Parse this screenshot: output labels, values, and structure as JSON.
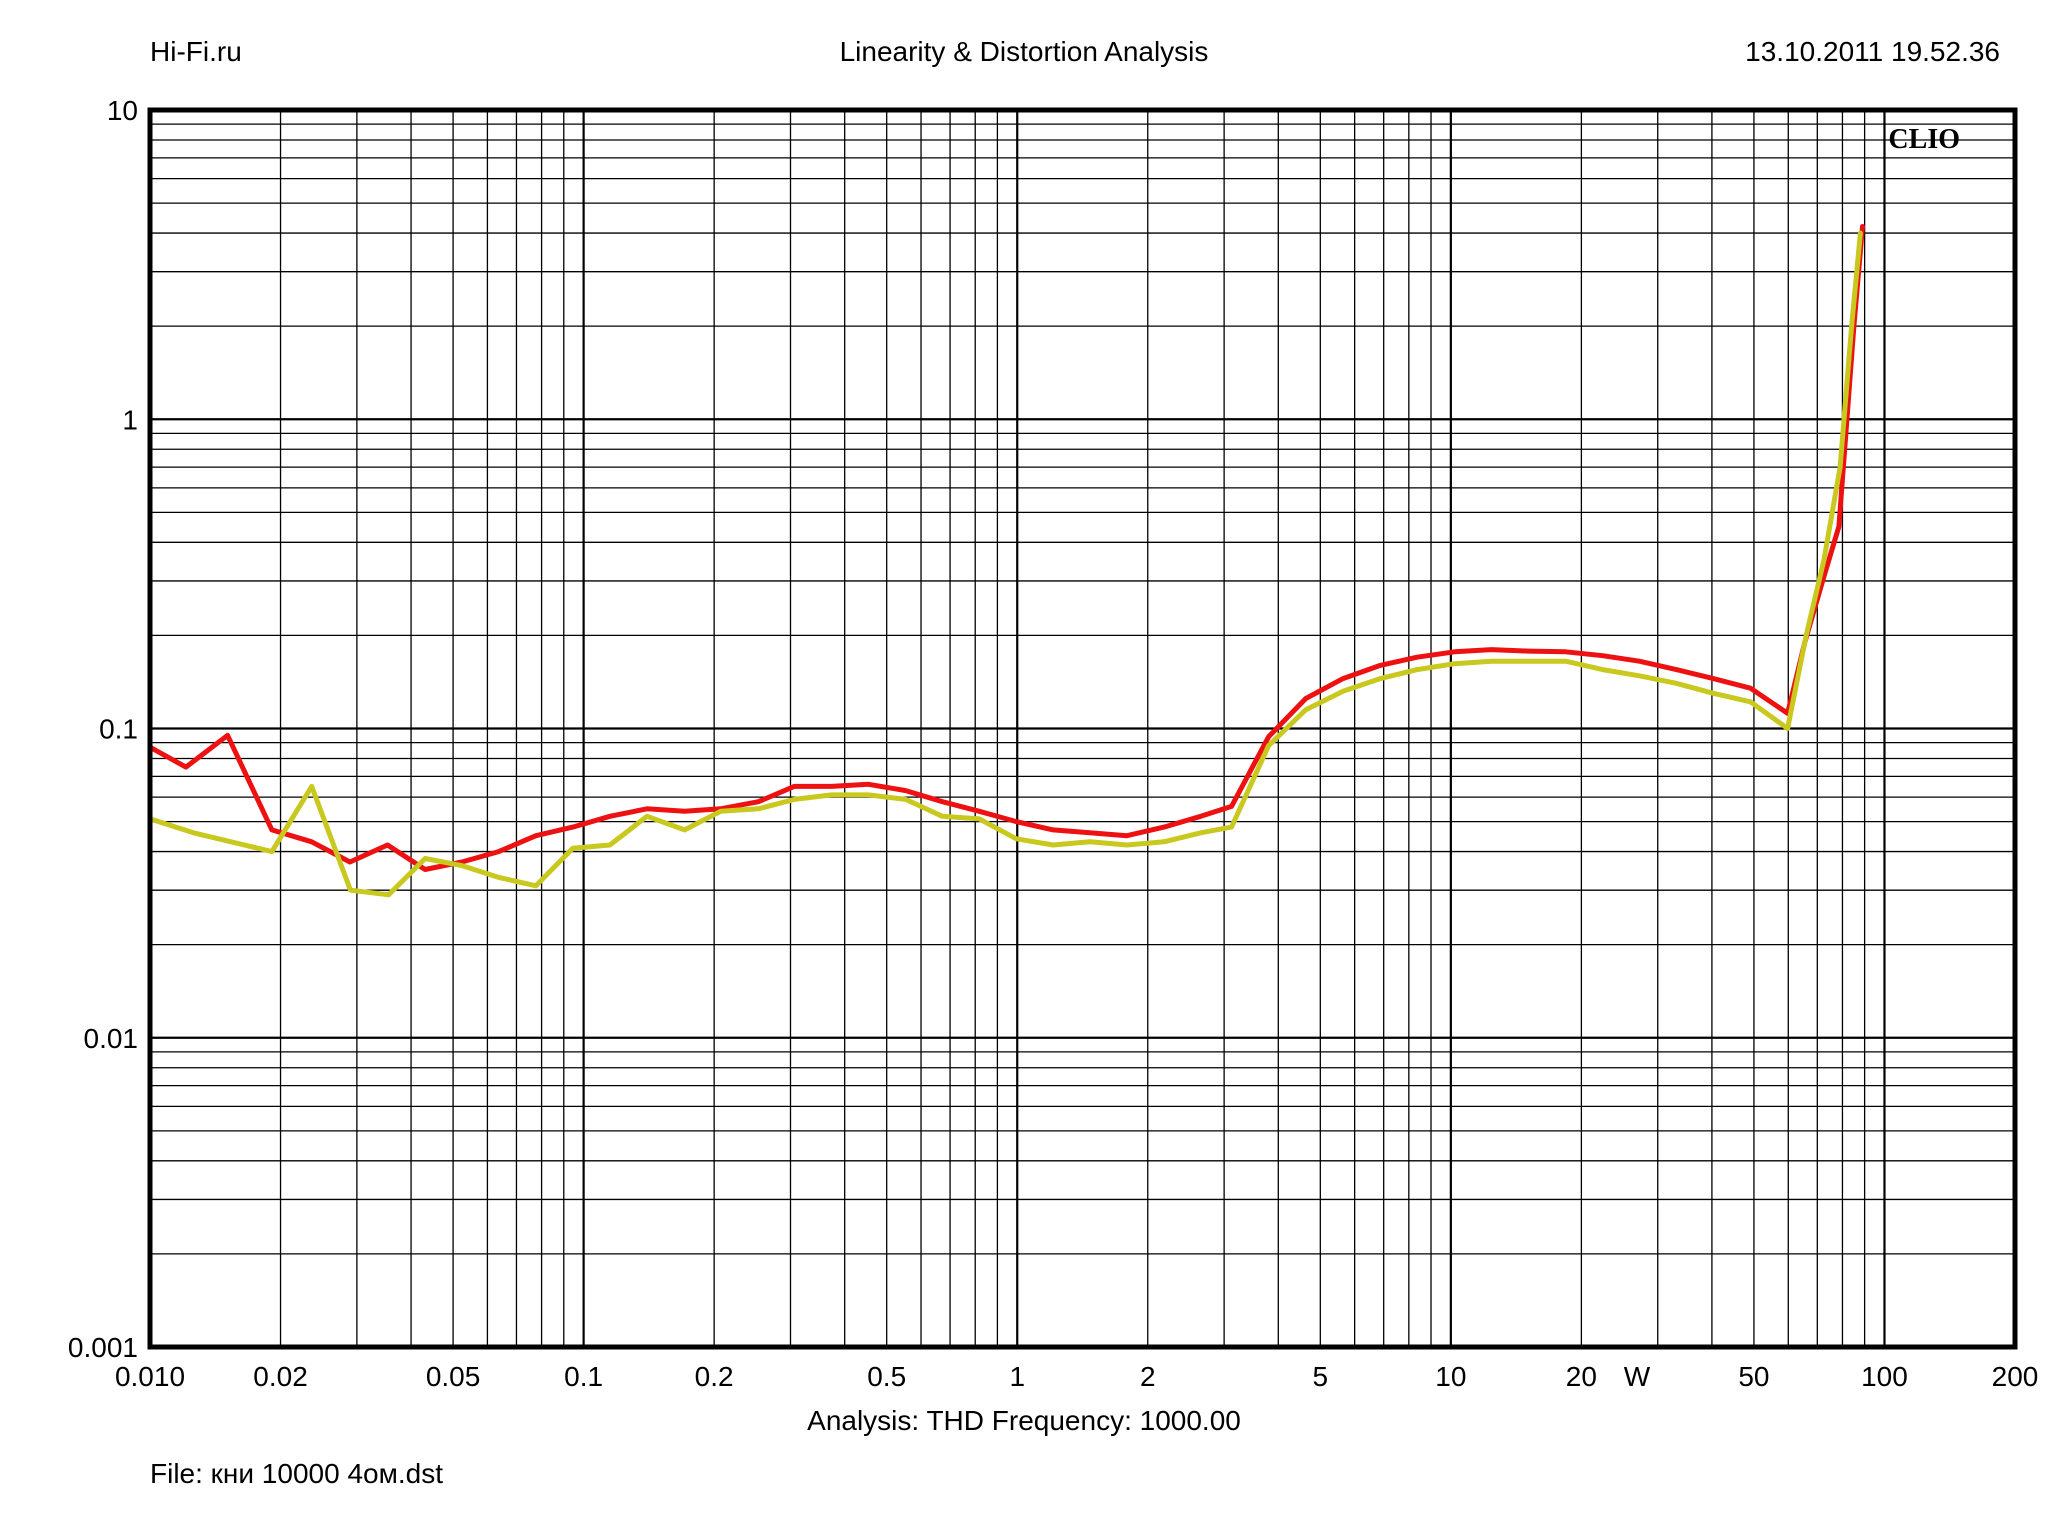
{
  "header": {
    "site": "Hi-Fi.ru",
    "title": "Linearity & Distortion Analysis",
    "timestamp": "13.10.2011 19.52.36"
  },
  "footer": {
    "analysis_label": "Analysis: THD   Frequency: 1000.00",
    "file_label": "File: кни 10000 4ом.dst"
  },
  "watermark": "CLIO",
  "colors": {
    "series_red": "#ee1111",
    "series_yellow": "#c8c81e",
    "grid": "#000000",
    "background": "#ffffff"
  },
  "chart_data": {
    "type": "line",
    "title": "Linearity & Distortion Analysis",
    "xlabel": "W",
    "ylabel": "",
    "x_scale": "log",
    "y_scale": "log",
    "xlim": [
      0.01,
      200
    ],
    "ylim": [
      0.001,
      10
    ],
    "grid": true,
    "x_ticks": [
      {
        "value": 0.01,
        "label": "0.010"
      },
      {
        "value": 0.02,
        "label": "0.02"
      },
      {
        "value": 0.05,
        "label": "0.05"
      },
      {
        "value": 0.1,
        "label": "0.1"
      },
      {
        "value": 0.2,
        "label": "0.2"
      },
      {
        "value": 0.5,
        "label": "0.5"
      },
      {
        "value": 1,
        "label": "1"
      },
      {
        "value": 2,
        "label": "2"
      },
      {
        "value": 5,
        "label": "5"
      },
      {
        "value": 10,
        "label": "10"
      },
      {
        "value": 20,
        "label": "20"
      },
      {
        "value": 50,
        "label": "50"
      },
      {
        "value": 100,
        "label": "100"
      },
      {
        "value": 200,
        "label": "200"
      }
    ],
    "y_ticks": [
      {
        "value": 10,
        "label": "10"
      },
      {
        "value": 1,
        "label": "1"
      },
      {
        "value": 0.1,
        "label": "0.1"
      },
      {
        "value": 0.01,
        "label": "0.01"
      },
      {
        "value": 0.001,
        "label": "0.001"
      }
    ],
    "series": [
      {
        "color": "#ee1111",
        "points": [
          [
            0.01,
            0.087
          ],
          [
            0.0121,
            0.075
          ],
          [
            0.0151,
            0.095
          ],
          [
            0.0191,
            0.047
          ],
          [
            0.0236,
            0.043
          ],
          [
            0.0289,
            0.037
          ],
          [
            0.0353,
            0.042
          ],
          [
            0.0431,
            0.035
          ],
          [
            0.0524,
            0.037
          ],
          [
            0.0637,
            0.04
          ],
          [
            0.0776,
            0.045
          ],
          [
            0.0944,
            0.048
          ],
          [
            0.115,
            0.052
          ],
          [
            0.14,
            0.055
          ],
          [
            0.171,
            0.054
          ],
          [
            0.207,
            0.055
          ],
          [
            0.253,
            0.058
          ],
          [
            0.306,
            0.065
          ],
          [
            0.373,
            0.065
          ],
          [
            0.454,
            0.066
          ],
          [
            0.553,
            0.063
          ],
          [
            0.672,
            0.058
          ],
          [
            0.818,
            0.054
          ],
          [
            0.995,
            0.05
          ],
          [
            1.21,
            0.047
          ],
          [
            1.47,
            0.046
          ],
          [
            1.79,
            0.045
          ],
          [
            2.18,
            0.048
          ],
          [
            2.65,
            0.052
          ],
          [
            3.12,
            0.056
          ],
          [
            3.8,
            0.094
          ],
          [
            4.63,
            0.125
          ],
          [
            5.64,
            0.145
          ],
          [
            6.87,
            0.16
          ],
          [
            8.36,
            0.17
          ],
          [
            10.2,
            0.177
          ],
          [
            12.4,
            0.18
          ],
          [
            15.1,
            0.178
          ],
          [
            18.4,
            0.177
          ],
          [
            22.4,
            0.172
          ],
          [
            27.2,
            0.165
          ],
          [
            33.1,
            0.155
          ],
          [
            40.3,
            0.145
          ],
          [
            49.1,
            0.135
          ],
          [
            59.8,
            0.112
          ],
          [
            65.5,
            0.19
          ],
          [
            72.0,
            0.3
          ],
          [
            78.5,
            0.45
          ],
          [
            85.0,
            2.0
          ],
          [
            89.0,
            4.2
          ]
        ]
      },
      {
        "color": "#c8c81e",
        "points": [
          [
            0.01,
            0.051
          ],
          [
            0.0126,
            0.046
          ],
          [
            0.0191,
            0.04
          ],
          [
            0.0236,
            0.065
          ],
          [
            0.029,
            0.03
          ],
          [
            0.0355,
            0.029
          ],
          [
            0.0431,
            0.038
          ],
          [
            0.0525,
            0.036
          ],
          [
            0.0637,
            0.033
          ],
          [
            0.0776,
            0.031
          ],
          [
            0.0944,
            0.041
          ],
          [
            0.115,
            0.042
          ],
          [
            0.14,
            0.052
          ],
          [
            0.171,
            0.047
          ],
          [
            0.207,
            0.054
          ],
          [
            0.253,
            0.055
          ],
          [
            0.306,
            0.059
          ],
          [
            0.373,
            0.061
          ],
          [
            0.454,
            0.061
          ],
          [
            0.553,
            0.059
          ],
          [
            0.672,
            0.052
          ],
          [
            0.818,
            0.051
          ],
          [
            0.995,
            0.044
          ],
          [
            1.21,
            0.042
          ],
          [
            1.47,
            0.043
          ],
          [
            1.79,
            0.042
          ],
          [
            2.18,
            0.043
          ],
          [
            2.65,
            0.046
          ],
          [
            3.12,
            0.048
          ],
          [
            3.8,
            0.088
          ],
          [
            4.63,
            0.115
          ],
          [
            5.64,
            0.132
          ],
          [
            6.87,
            0.145
          ],
          [
            8.36,
            0.155
          ],
          [
            10.2,
            0.162
          ],
          [
            12.4,
            0.165
          ],
          [
            15.1,
            0.165
          ],
          [
            18.4,
            0.165
          ],
          [
            22.4,
            0.155
          ],
          [
            27.2,
            0.148
          ],
          [
            33.1,
            0.14
          ],
          [
            40.3,
            0.13
          ],
          [
            49.1,
            0.122
          ],
          [
            59.8,
            0.1
          ],
          [
            66.0,
            0.2
          ],
          [
            72.5,
            0.35
          ],
          [
            79.0,
            0.7
          ],
          [
            84.0,
            2.0
          ],
          [
            88.0,
            4.0
          ]
        ]
      }
    ]
  }
}
